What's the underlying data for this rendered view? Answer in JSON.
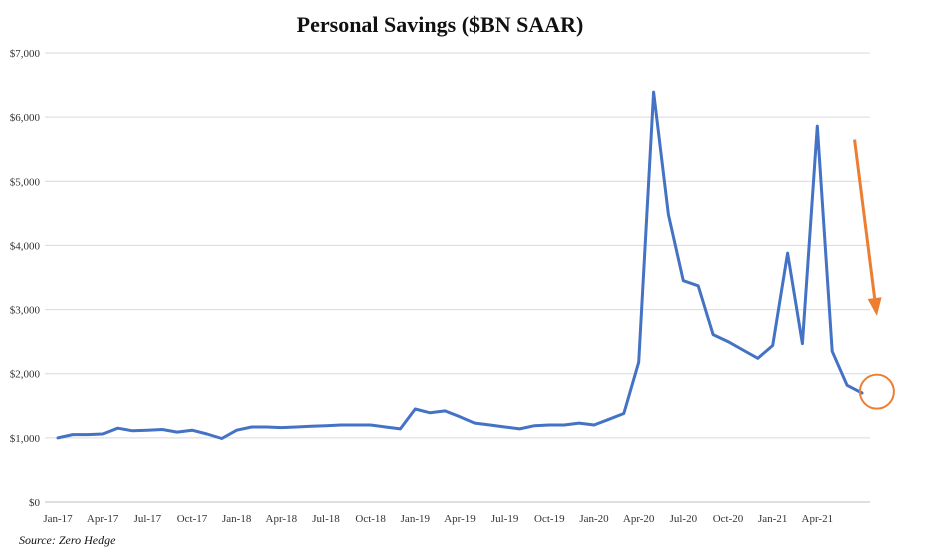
{
  "chart_data": {
    "type": "line",
    "title": "Personal Savings ($BN SAAR)",
    "source": "Source: Zero Hedge",
    "xlabel": "",
    "ylabel": "",
    "ylim": [
      0,
      7000
    ],
    "grid": true,
    "y_ticks": [
      {
        "value": 0,
        "label": "$0"
      },
      {
        "value": 1000,
        "label": "$1,000"
      },
      {
        "value": 2000,
        "label": "$2,000"
      },
      {
        "value": 3000,
        "label": "$3,000"
      },
      {
        "value": 4000,
        "label": "$4,000"
      },
      {
        "value": 5000,
        "label": "$5,000"
      },
      {
        "value": 6000,
        "label": "$6,000"
      },
      {
        "value": 7000,
        "label": "$7,000"
      }
    ],
    "x_ticks": [
      {
        "index": 0,
        "label": "Jan-17"
      },
      {
        "index": 3,
        "label": "Apr-17"
      },
      {
        "index": 6,
        "label": "Jul-17"
      },
      {
        "index": 9,
        "label": "Oct-17"
      },
      {
        "index": 12,
        "label": "Jan-18"
      },
      {
        "index": 15,
        "label": "Apr-18"
      },
      {
        "index": 18,
        "label": "Jul-18"
      },
      {
        "index": 21,
        "label": "Oct-18"
      },
      {
        "index": 24,
        "label": "Jan-19"
      },
      {
        "index": 27,
        "label": "Apr-19"
      },
      {
        "index": 30,
        "label": "Jul-19"
      },
      {
        "index": 33,
        "label": "Oct-19"
      },
      {
        "index": 36,
        "label": "Jan-20"
      },
      {
        "index": 39,
        "label": "Apr-20"
      },
      {
        "index": 42,
        "label": "Jul-20"
      },
      {
        "index": 45,
        "label": "Oct-20"
      },
      {
        "index": 48,
        "label": "Jan-21"
      },
      {
        "index": 51,
        "label": "Apr-21"
      }
    ],
    "series": [
      {
        "color": "#4472c4",
        "values": [
          1000,
          1050,
          1050,
          1060,
          1150,
          1110,
          1120,
          1130,
          1090,
          1120,
          1060,
          990,
          1120,
          1170,
          1170,
          1160,
          1170,
          1180,
          1190,
          1200,
          1200,
          1200,
          1170,
          1140,
          1450,
          1390,
          1420,
          1330,
          1230,
          1200,
          1170,
          1140,
          1190,
          1200,
          1200,
          1230,
          1200,
          1290,
          1380,
          2180,
          6390,
          4480,
          3450,
          3370,
          2610,
          2500,
          2370,
          2240,
          2440,
          3880,
          2470,
          5860,
          2350,
          1820,
          1700
        ]
      }
    ],
    "annotations": {
      "arrow_color": "#ed7d31",
      "arrow_from": {
        "index": 53.5,
        "value": 5650
      },
      "arrow_to": {
        "index": 55.0,
        "value": 2900
      },
      "circle_color": "#ed7d31",
      "circle_at": {
        "index": 55.0,
        "value": 1720
      }
    }
  }
}
